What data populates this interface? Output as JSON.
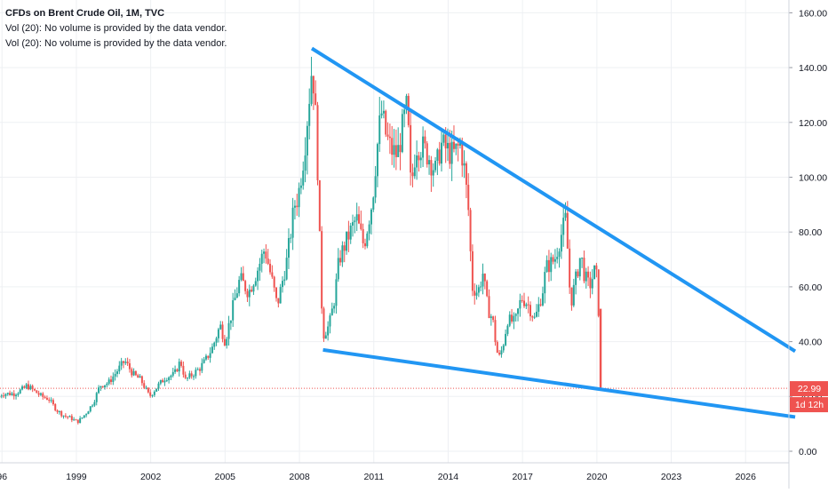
{
  "legend": {
    "title": "CFDs on Brent Crude Oil, 1M, TVC",
    "vol_line_1": "Vol (20): No volume is provided by the data vendor.",
    "vol_line_2": "Vol (20): No volume is provided by the data vendor."
  },
  "price_scale": {
    "ticks": [
      "0.00",
      "20.00",
      "40.00",
      "60.00",
      "80.00",
      "100.00",
      "120.00",
      "140.00",
      "160.00"
    ],
    "last_price_label": "22.99",
    "countdown_label": "1d 12h"
  },
  "time_scale": {
    "ticks": [
      "96",
      "1999",
      "2002",
      "2005",
      "2008",
      "2011",
      "2014",
      "2017",
      "2020",
      "2023",
      "2026"
    ]
  },
  "colors": {
    "up": "#26a69a",
    "down": "#ef5350",
    "trendline": "#2196f3",
    "price_line": "#ef5350",
    "grid": "#eef0f3",
    "axis_text": "#131722"
  },
  "chart_data": {
    "type": "candlestick",
    "title": "CFDs on Brent Crude Oil, 1M, TVC",
    "y_range": [
      0,
      160
    ],
    "y_ticks": [
      0,
      20,
      40,
      60,
      80,
      100,
      120,
      140,
      160
    ],
    "x_range": [
      1995.8,
      2028.0
    ],
    "last_price": 22.99,
    "series": [
      {
        "values": [
          [
            1995.9,
            20
          ],
          [
            1996.0,
            21
          ],
          [
            1996.5,
            21
          ],
          [
            1996.9,
            23
          ],
          [
            1997.0,
            24
          ],
          [
            1997.3,
            22
          ],
          [
            1997.6,
            20
          ],
          [
            1997.9,
            19
          ],
          [
            1998.2,
            15
          ],
          [
            1998.5,
            13
          ],
          [
            1998.8,
            12
          ],
          [
            1998.95,
            11
          ],
          [
            1999.1,
            11
          ],
          [
            1999.4,
            14
          ],
          [
            1999.7,
            18
          ],
          [
            1999.95,
            24
          ],
          [
            2000.3,
            25
          ],
          [
            2000.7,
            30
          ],
          [
            2000.95,
            33
          ],
          [
            2001.3,
            28
          ],
          [
            2001.6,
            26
          ],
          [
            2001.95,
            20
          ],
          [
            2002.3,
            24
          ],
          [
            2002.6,
            27
          ],
          [
            2002.95,
            28
          ],
          [
            2003.2,
            33
          ],
          [
            2003.4,
            26
          ],
          [
            2003.95,
            30
          ],
          [
            2004.2,
            33
          ],
          [
            2004.5,
            38
          ],
          [
            2004.8,
            46
          ],
          [
            2005.0,
            40
          ],
          [
            2005.3,
            52
          ],
          [
            2005.6,
            63
          ],
          [
            2005.95,
            58
          ],
          [
            2006.3,
            66
          ],
          [
            2006.6,
            74
          ],
          [
            2006.95,
            60
          ],
          [
            2007.1,
            53
          ],
          [
            2007.5,
            70
          ],
          [
            2007.8,
            90
          ],
          [
            2007.95,
            93
          ],
          [
            2008.2,
            110
          ],
          [
            2008.5,
            140
          ],
          [
            2008.6,
            133
          ],
          [
            2008.75,
            100
          ],
          [
            2008.85,
            65
          ],
          [
            2008.95,
            42
          ],
          [
            2009.0,
            43
          ],
          [
            2009.2,
            46
          ],
          [
            2009.4,
            55
          ],
          [
            2009.6,
            70
          ],
          [
            2009.95,
            78
          ],
          [
            2010.3,
            85
          ],
          [
            2010.6,
            75
          ],
          [
            2010.95,
            92
          ],
          [
            2011.1,
            108
          ],
          [
            2011.3,
            124
          ],
          [
            2011.5,
            115
          ],
          [
            2011.7,
            110
          ],
          [
            2011.95,
            108
          ],
          [
            2012.2,
            120
          ],
          [
            2012.35,
            126
          ],
          [
            2012.5,
            95
          ],
          [
            2012.7,
            112
          ],
          [
            2012.95,
            111
          ],
          [
            2013.2,
            108
          ],
          [
            2013.5,
            102
          ],
          [
            2013.7,
            112
          ],
          [
            2013.95,
            110
          ],
          [
            2014.2,
            108
          ],
          [
            2014.5,
            112
          ],
          [
            2014.65,
            103
          ],
          [
            2014.85,
            85
          ],
          [
            2014.95,
            60
          ],
          [
            2015.2,
            58
          ],
          [
            2015.4,
            65
          ],
          [
            2015.6,
            52
          ],
          [
            2015.8,
            48
          ],
          [
            2015.95,
            37
          ],
          [
            2016.05,
            34
          ],
          [
            2016.2,
            38
          ],
          [
            2016.4,
            48
          ],
          [
            2016.7,
            47
          ],
          [
            2016.95,
            56
          ],
          [
            2017.2,
            54
          ],
          [
            2017.5,
            48
          ],
          [
            2017.8,
            58
          ],
          [
            2017.95,
            67
          ],
          [
            2018.3,
            70
          ],
          [
            2018.5,
            77
          ],
          [
            2018.75,
            85
          ],
          [
            2018.9,
            60
          ],
          [
            2018.95,
            54
          ],
          [
            2019.2,
            65
          ],
          [
            2019.35,
            72
          ],
          [
            2019.5,
            64
          ],
          [
            2019.7,
            60
          ],
          [
            2019.95,
            67
          ],
          [
            2020.05,
            57
          ],
          [
            2020.15,
            23
          ]
        ]
      }
    ],
    "trendlines": [
      {
        "from": [
          2008.5,
          147
        ],
        "to": [
          2028.0,
          36.5
        ]
      },
      {
        "from": [
          2008.95,
          37
        ],
        "to": [
          2028.0,
          12.5
        ]
      }
    ]
  }
}
